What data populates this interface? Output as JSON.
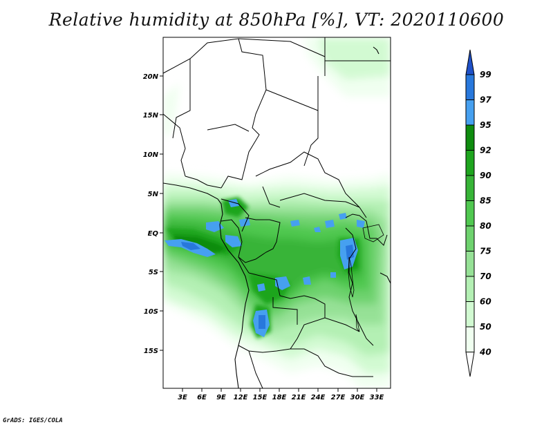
{
  "title": "Relative humidity at 850hPa [%], VT: 2020110600",
  "credit": "GrADS: IGES/COLA",
  "map": {
    "lat_labels": [
      "20N",
      "15N",
      "10N",
      "5N",
      "EQ",
      "5S",
      "10S",
      "15S"
    ],
    "lon_labels": [
      "3E",
      "6E",
      "9E",
      "12E",
      "15E",
      "18E",
      "21E",
      "24E",
      "27E",
      "30E",
      "33E"
    ]
  },
  "colorbar": {
    "labels": [
      "99",
      "97",
      "95",
      "92",
      "90",
      "85",
      "80",
      "75",
      "70",
      "60",
      "50",
      "40"
    ],
    "colors": {
      "ge99": "#1e50c8",
      "97-99": "#2878dc",
      "95-97": "#46a0f0",
      "92-95": "#0f8c0f",
      "90-92": "#1ea51e",
      "85-90": "#37b437",
      "80-85": "#50c850",
      "75-80": "#6ed26e",
      "70-75": "#96e196",
      "60-70": "#b4f0b4",
      "50-60": "#d2fad2",
      "40-50": "#f0fff0",
      "lt40": "#ffffff"
    }
  }
}
